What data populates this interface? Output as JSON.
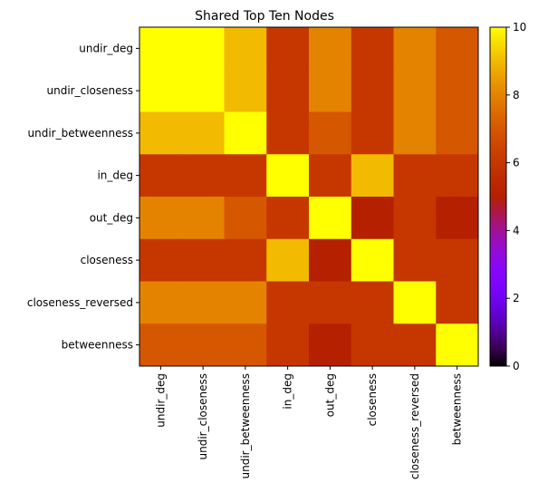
{
  "chart_data": {
    "type": "heatmap",
    "title": "Shared Top Ten Nodes",
    "xlabel": "",
    "ylabel": "",
    "row_labels": [
      "undir_deg",
      "undir_closeness",
      "undir_betweenness",
      "in_deg",
      "out_deg",
      "closeness",
      "closeness_reversed",
      "betweenness"
    ],
    "col_labels": [
      "undir_deg",
      "undir_closeness",
      "undir_betweenness",
      "in_deg",
      "out_deg",
      "closeness",
      "closeness_reversed",
      "betweenness"
    ],
    "values": [
      [
        10,
        10,
        9,
        6,
        8,
        6,
        8,
        7
      ],
      [
        10,
        10,
        9,
        6,
        8,
        6,
        8,
        7
      ],
      [
        9,
        9,
        10,
        6,
        7,
        6,
        8,
        7
      ],
      [
        6,
        6,
        6,
        10,
        6,
        9,
        6,
        6
      ],
      [
        8,
        8,
        7,
        6,
        10,
        5,
        6,
        5
      ],
      [
        6,
        6,
        6,
        9,
        5,
        10,
        6,
        6
      ],
      [
        8,
        8,
        8,
        6,
        6,
        6,
        10,
        6
      ],
      [
        7,
        7,
        7,
        6,
        5,
        6,
        6,
        10
      ]
    ],
    "colormap": "gnuplot",
    "vmin": 0,
    "vmax": 10,
    "colorbar_ticks": [
      "0",
      "2",
      "4",
      "6",
      "8",
      "10"
    ],
    "grid": false
  }
}
